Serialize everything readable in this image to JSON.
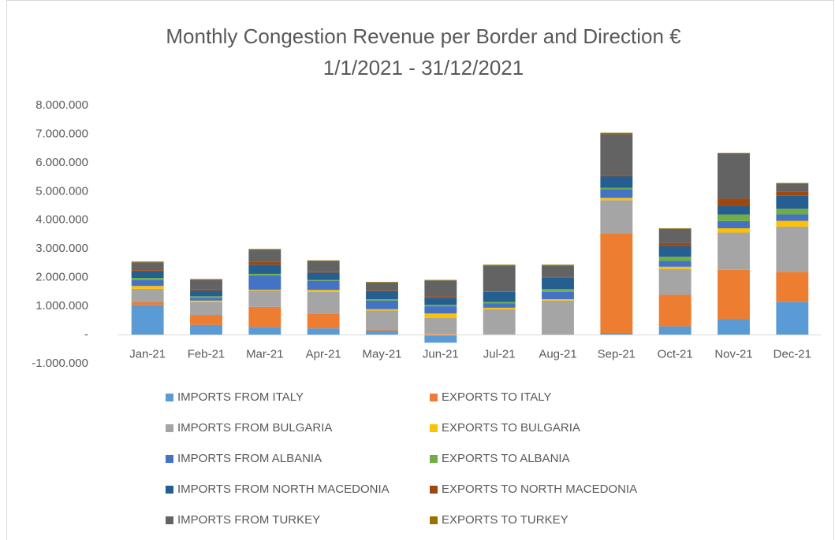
{
  "chart_data": {
    "type": "stacked_bar",
    "title": "Monthly Congestion Revenue per Border and Direction €",
    "subtitle": "1/1/2021 - 31/12/2021",
    "categories": [
      "Jan-21",
      "Feb-21",
      "Mar-21",
      "Apr-21",
      "May-21",
      "Jun-21",
      "Jul-21",
      "Aug-21",
      "Sep-21",
      "Oct-21",
      "Nov-21",
      "Dec-21"
    ],
    "series": [
      {
        "name": "IMPORTS FROM ITALY",
        "color": "#5b9bd5",
        "values": [
          1040000,
          350000,
          280000,
          230000,
          150000,
          -270000,
          0,
          0,
          70000,
          300000,
          550000,
          1150000
        ]
      },
      {
        "name": "EXPORTS TO ITALY",
        "color": "#ed7d31",
        "values": [
          100000,
          350000,
          700000,
          520000,
          50000,
          50000,
          20000,
          0,
          3480000,
          1100000,
          1720000,
          1050000
        ]
      },
      {
        "name": "IMPORTS FROM BULGARIA",
        "color": "#a5a5a5",
        "values": [
          470000,
          450000,
          570000,
          750000,
          650000,
          550000,
          880000,
          1200000,
          1150000,
          900000,
          1300000,
          1580000
        ]
      },
      {
        "name": "EXPORTS TO BULGARIA",
        "color": "#ffc000",
        "values": [
          100000,
          50000,
          30000,
          70000,
          50000,
          150000,
          50000,
          50000,
          80000,
          80000,
          150000,
          200000
        ]
      },
      {
        "name": "IMPORTS FROM ALBANIA",
        "color": "#4472c4",
        "values": [
          200000,
          100000,
          500000,
          320000,
          300000,
          250000,
          150000,
          250000,
          300000,
          200000,
          250000,
          220000
        ]
      },
      {
        "name": "EXPORTS TO ALBANIA",
        "color": "#70ad47",
        "values": [
          80000,
          50000,
          50000,
          30000,
          50000,
          50000,
          50000,
          100000,
          50000,
          150000,
          230000,
          200000
        ]
      },
      {
        "name": "IMPORTS FROM NORTH MACEDONIA",
        "color": "#255e91",
        "values": [
          220000,
          200000,
          320000,
          250000,
          280000,
          250000,
          350000,
          400000,
          400000,
          370000,
          300000,
          450000
        ]
      },
      {
        "name": "EXPORTS TO NORTH MACEDONIA",
        "color": "#9e480e",
        "values": [
          50000,
          50000,
          100000,
          20000,
          20000,
          50000,
          20000,
          20000,
          50000,
          100000,
          250000,
          150000
        ]
      },
      {
        "name": "IMPORTS FROM TURKEY",
        "color": "#636363",
        "values": [
          270000,
          330000,
          420000,
          390000,
          280000,
          550000,
          900000,
          400000,
          1420000,
          500000,
          1580000,
          270000
        ]
      },
      {
        "name": "EXPORTS TO TURKEY",
        "color": "#997300",
        "values": [
          30000,
          20000,
          30000,
          20000,
          20000,
          20000,
          30000,
          30000,
          50000,
          20000,
          20000,
          30000
        ]
      }
    ],
    "ylim": [
      -1000000,
      8000000
    ],
    "yticks": [
      {
        "value": -1000000,
        "label": "-1.000.000"
      },
      {
        "value": 0,
        "label": "-"
      },
      {
        "value": 1000000,
        "label": "1.000.000"
      },
      {
        "value": 2000000,
        "label": "2.000.000"
      },
      {
        "value": 3000000,
        "label": "3.000.000"
      },
      {
        "value": 4000000,
        "label": "4.000.000"
      },
      {
        "value": 5000000,
        "label": "5.000.000"
      },
      {
        "value": 6000000,
        "label": "6.000.000"
      },
      {
        "value": 7000000,
        "label": "7.000.000"
      },
      {
        "value": 8000000,
        "label": "8.000.000"
      }
    ],
    "grid": false,
    "legend": "bottom"
  }
}
